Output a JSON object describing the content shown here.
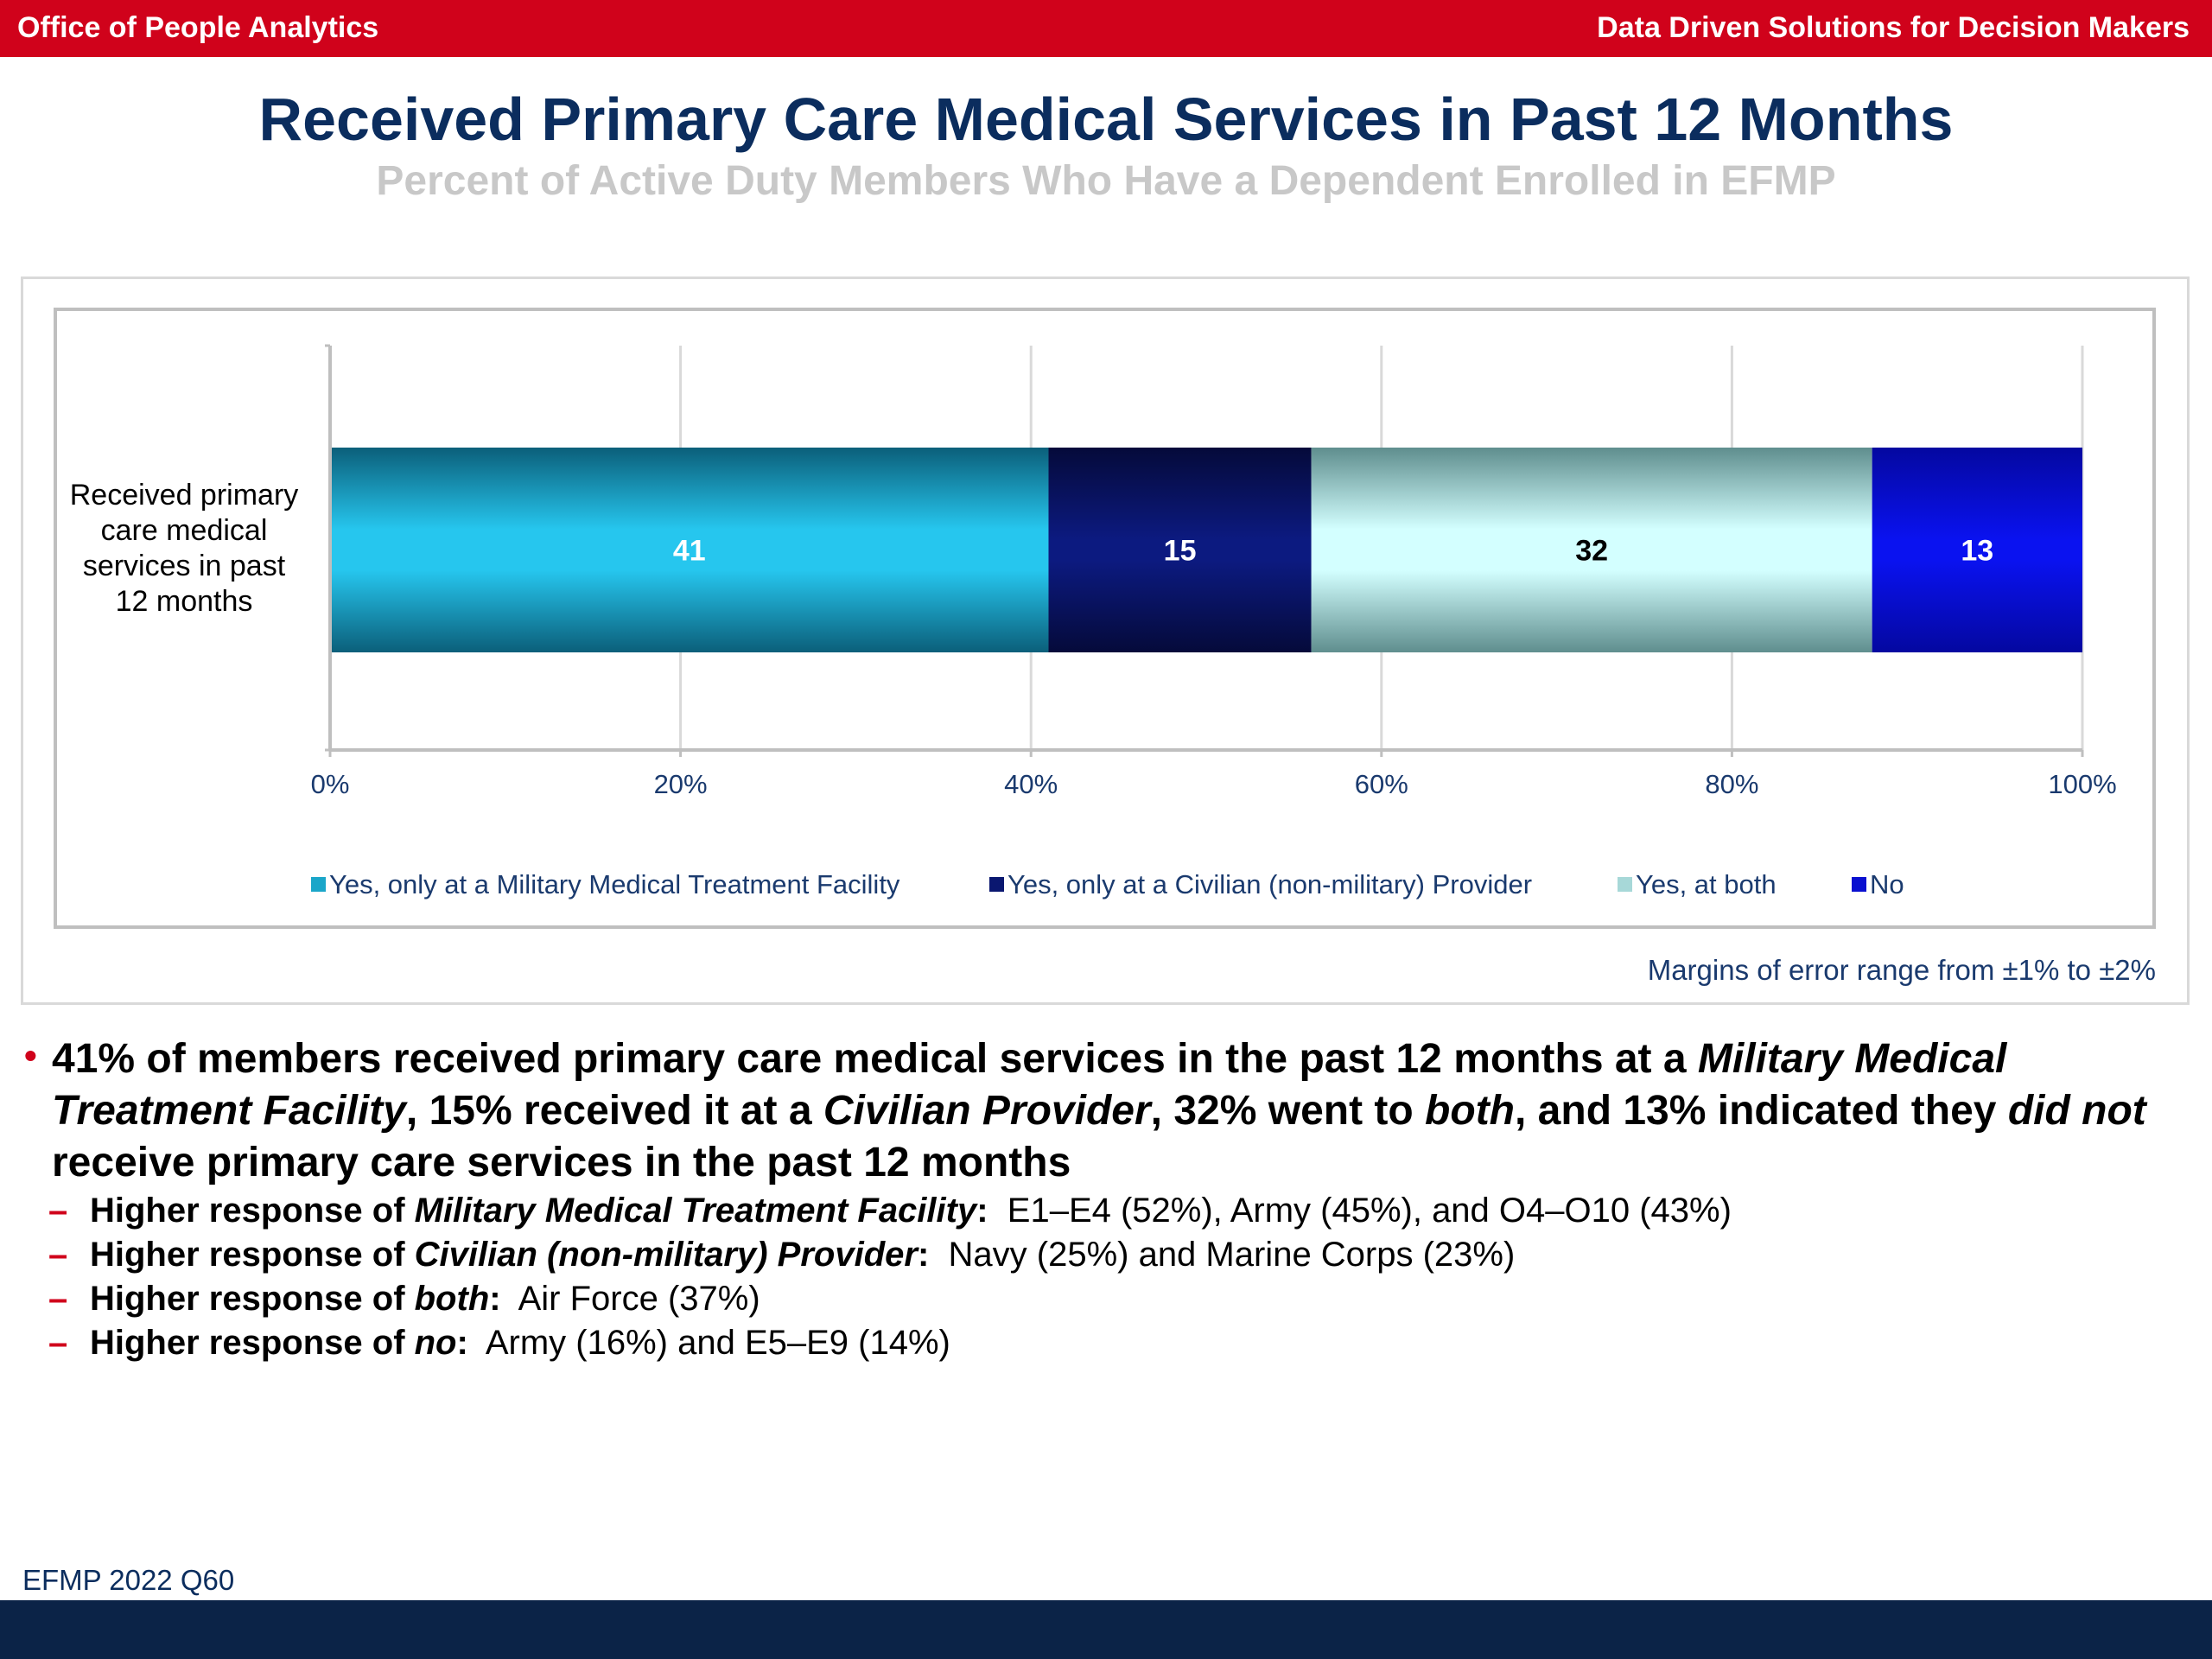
{
  "header": {
    "left_text": "Office of People Analytics",
    "right_text": "Data Driven Solutions for Decision Makers"
  },
  "title": "Received Primary Care Medical Services in Past 12 Months",
  "subtitle": "Percent of Active Duty Members Who Have a Dependent Enrolled in EFMP",
  "chart_data": {
    "type": "bar",
    "orientation": "horizontal",
    "stacked": true,
    "categories": [
      "Received primary care medical services in past 12 months"
    ],
    "category_label_lines": [
      "Received primary",
      "care medical",
      "services in past",
      "12 months"
    ],
    "series": [
      {
        "name": "Yes, only at a Military Medical Treatment Facility",
        "values": [
          41
        ],
        "color": "#1aa6c9",
        "label_color": "#ffffff"
      },
      {
        "name": "Yes, only at a Civilian (non-military) Provider",
        "values": [
          15
        ],
        "color": "#0a1770",
        "label_color": "#ffffff"
      },
      {
        "name": "Yes, at both",
        "values": [
          32
        ],
        "color": "#a7d8d8",
        "label_color": "#000000"
      },
      {
        "name": "No",
        "values": [
          13
        ],
        "color": "#0a10d0",
        "label_color": "#ffffff"
      }
    ],
    "xlim": [
      0,
      100
    ],
    "x_ticks": [
      "0%",
      "20%",
      "40%",
      "60%",
      "80%",
      "100%"
    ],
    "grid": true,
    "legend_position": "bottom"
  },
  "margin_note": "Margins of error range from ±1% to ±2%",
  "bullets": {
    "main_parts": [
      {
        "text": "41% of members received primary care medical services in the past 12 months at a ",
        "italic": false
      },
      {
        "text": "Military Medical Treatment Facility",
        "italic": true
      },
      {
        "text": ", 15% received it at a ",
        "italic": false
      },
      {
        "text": "Civilian Provider",
        "italic": true
      },
      {
        "text": ", 32% went to ",
        "italic": false
      },
      {
        "text": "both",
        "italic": true
      },
      {
        "text": ", and 13% indicated they ",
        "italic": false
      },
      {
        "text": "did not",
        "italic": true
      },
      {
        "text": " receive primary care services in the past 12 months",
        "italic": false
      }
    ],
    "subs": [
      {
        "lead": "Higher response of ",
        "term": "Military Medical Treatment Facility",
        "colon": ":",
        "detail": "  E1–E4 (52%), Army (45%), and O4–O10 (43%)"
      },
      {
        "lead": "Higher response of ",
        "term": "Civilian (non-military) Provider",
        "colon": ":",
        "detail": "  Navy (25%) and Marine Corps (23%)"
      },
      {
        "lead": "Higher response of ",
        "term": "both",
        "colon": ":",
        "detail": "  Air Force (37%)"
      },
      {
        "lead": "Higher response of ",
        "term": "no",
        "colon": ":",
        "detail": "  Army (16%) and E5–E9 (14%)"
      }
    ]
  },
  "footnote": "EFMP 2022 Q60"
}
